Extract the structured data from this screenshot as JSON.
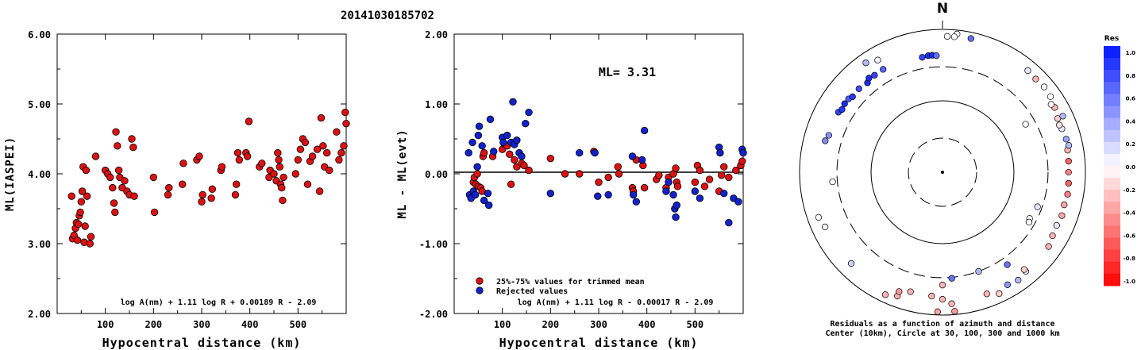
{
  "title": "20141030185702",
  "chart_data": [
    {
      "type": "scatter",
      "ylabel": "ML(IASPEI)",
      "xlabel": "Hypocentral distance (km)",
      "xlim": [
        0,
        600
      ],
      "ylim": [
        2.0,
        6.0
      ],
      "x_ticks": [
        "100",
        "200",
        "300",
        "400",
        "500"
      ],
      "y_ticks": [
        "2.00",
        "3.00",
        "4.00",
        "5.00",
        "6.00"
      ],
      "formula": "log A(nm) + 1.11 log R + 0.00189 R - 2.09",
      "marker_color": "#dd1111",
      "points": [
        [
          30,
          3.68
        ],
        [
          32,
          3.07
        ],
        [
          35,
          3.12
        ],
        [
          38,
          3.22
        ],
        [
          40,
          3.3
        ],
        [
          42,
          3.05
        ],
        [
          44,
          3.28
        ],
        [
          46,
          3.4
        ],
        [
          48,
          3.45
        ],
        [
          50,
          3.6
        ],
        [
          52,
          3.75
        ],
        [
          54,
          4.1
        ],
        [
          56,
          3.02
        ],
        [
          58,
          3.25
        ],
        [
          60,
          4.05
        ],
        [
          62,
          3.68
        ],
        [
          68,
          3.0
        ],
        [
          70,
          3.1
        ],
        [
          80,
          4.25
        ],
        [
          100,
          4.05
        ],
        [
          105,
          4.0
        ],
        [
          110,
          3.95
        ],
        [
          115,
          3.8
        ],
        [
          118,
          3.58
        ],
        [
          120,
          3.45
        ],
        [
          122,
          4.6
        ],
        [
          125,
          4.4
        ],
        [
          128,
          4.05
        ],
        [
          130,
          3.95
        ],
        [
          135,
          3.8
        ],
        [
          140,
          3.9
        ],
        [
          145,
          3.75
        ],
        [
          150,
          3.7
        ],
        [
          155,
          4.5
        ],
        [
          158,
          4.38
        ],
        [
          160,
          3.68
        ],
        [
          200,
          3.95
        ],
        [
          202,
          3.45
        ],
        [
          230,
          3.7
        ],
        [
          232,
          3.8
        ],
        [
          260,
          3.85
        ],
        [
          262,
          4.15
        ],
        [
          290,
          4.2
        ],
        [
          295,
          4.25
        ],
        [
          300,
          3.6
        ],
        [
          302,
          3.7
        ],
        [
          320,
          3.65
        ],
        [
          322,
          3.78
        ],
        [
          340,
          4.05
        ],
        [
          342,
          4.1
        ],
        [
          370,
          3.7
        ],
        [
          372,
          3.85
        ],
        [
          375,
          4.3
        ],
        [
          378,
          4.2
        ],
        [
          392,
          4.3
        ],
        [
          395,
          4.25
        ],
        [
          398,
          4.75
        ],
        [
          420,
          4.1
        ],
        [
          425,
          4.15
        ],
        [
          440,
          3.95
        ],
        [
          442,
          4.05
        ],
        [
          450,
          4.0
        ],
        [
          455,
          3.9
        ],
        [
          458,
          4.3
        ],
        [
          460,
          4.2
        ],
        [
          462,
          4.1
        ],
        [
          464,
          3.85
        ],
        [
          466,
          3.8
        ],
        [
          468,
          3.62
        ],
        [
          470,
          3.95
        ],
        [
          495,
          4.0
        ],
        [
          500,
          4.2
        ],
        [
          505,
          4.35
        ],
        [
          510,
          4.5
        ],
        [
          515,
          4.45
        ],
        [
          520,
          3.85
        ],
        [
          525,
          4.18
        ],
        [
          530,
          4.25
        ],
        [
          540,
          4.35
        ],
        [
          545,
          3.75
        ],
        [
          548,
          4.8
        ],
        [
          552,
          4.4
        ],
        [
          555,
          4.1
        ],
        [
          560,
          4.3
        ],
        [
          565,
          4.05
        ],
        [
          580,
          4.6
        ],
        [
          585,
          4.2
        ],
        [
          590,
          4.3
        ],
        [
          595,
          4.4
        ],
        [
          598,
          4.88
        ],
        [
          600,
          4.72
        ]
      ]
    },
    {
      "type": "scatter",
      "ylabel": "ML - ML(evt)",
      "xlabel": "Hypocentral distance (km)",
      "xlim": [
        0,
        600
      ],
      "ylim": [
        -2.0,
        2.0
      ],
      "x_ticks": [
        "100",
        "200",
        "300",
        "400",
        "500"
      ],
      "y_ticks": [
        "-2.00",
        "-1.00",
        "0.00",
        "1.00",
        "2.00"
      ],
      "reference_line": 0.0,
      "annotation": "ML= 3.31",
      "formula": "log A(nm) + 1.11 log R - 0.00017 R - 2.09",
      "legend": [
        {
          "label": "25%-75% values for trimmed mean",
          "color": "#dd1111"
        },
        {
          "label": "Rejected values",
          "color": "#1122cc"
        }
      ],
      "series": [
        {
          "name": "25%-75% values for trimmed mean",
          "color": "#dd1111",
          "points": [
            [
              40,
              -0.12
            ],
            [
              42,
              -0.05
            ],
            [
              45,
              -0.15
            ],
            [
              48,
              0.0
            ],
            [
              50,
              -0.18
            ],
            [
              55,
              -0.2
            ],
            [
              58,
              -0.25
            ],
            [
              60,
              0.25
            ],
            [
              62,
              0.3
            ],
            [
              80,
              0.25
            ],
            [
              100,
              0.35
            ],
            [
              105,
              0.42
            ],
            [
              110,
              0.4
            ],
            [
              115,
              0.28
            ],
            [
              118,
              -0.15
            ],
            [
              125,
              0.2
            ],
            [
              130,
              0.1
            ],
            [
              140,
              0.15
            ],
            [
              145,
              0.12
            ],
            [
              155,
              0.05
            ],
            [
              200,
              0.22
            ],
            [
              230,
              0.0
            ],
            [
              260,
              0.0
            ],
            [
              290,
              0.32
            ],
            [
              300,
              -0.12
            ],
            [
              320,
              -0.05
            ],
            [
              340,
              0.1
            ],
            [
              342,
              0.0
            ],
            [
              370,
              -0.2
            ],
            [
              372,
              -0.25
            ],
            [
              378,
              0.2
            ],
            [
              392,
              0.12
            ],
            [
              395,
              -0.2
            ],
            [
              420,
              -0.08
            ],
            [
              425,
              -0.02
            ],
            [
              440,
              -0.2
            ],
            [
              445,
              -0.05
            ],
            [
              455,
              0.0
            ],
            [
              460,
              0.08
            ],
            [
              462,
              -0.12
            ],
            [
              464,
              -0.18
            ],
            [
              500,
              -0.12
            ],
            [
              505,
              0.12
            ],
            [
              510,
              0.05
            ],
            [
              520,
              -0.18
            ],
            [
              530,
              -0.08
            ],
            [
              550,
              -0.25
            ],
            [
              555,
              -0.02
            ],
            [
              560,
              0.1
            ],
            [
              570,
              -0.05
            ],
            [
              585,
              0.05
            ],
            [
              595,
              0.12
            ],
            [
              598,
              0.18
            ]
          ]
        },
        {
          "name": "Rejected values",
          "color": "#1122cc",
          "points": [
            [
              30,
              0.3
            ],
            [
              32,
              -0.3
            ],
            [
              35,
              -0.35
            ],
            [
              38,
              0.45
            ],
            [
              40,
              -0.25
            ],
            [
              44,
              -0.3
            ],
            [
              48,
              0.1
            ],
            [
              50,
              0.55
            ],
            [
              52,
              0.68
            ],
            [
              58,
              0.4
            ],
            [
              62,
              -0.38
            ],
            [
              70,
              -0.28
            ],
            [
              72,
              -0.45
            ],
            [
              75,
              0.78
            ],
            [
              82,
              0.32
            ],
            [
              100,
              0.52
            ],
            [
              102,
              0.45
            ],
            [
              110,
              0.55
            ],
            [
              118,
              0.45
            ],
            [
              122,
              1.03
            ],
            [
              125,
              0.42
            ],
            [
              130,
              0.48
            ],
            [
              135,
              0.3
            ],
            [
              140,
              0.25
            ],
            [
              148,
              0.72
            ],
            [
              155,
              0.88
            ],
            [
              200,
              -0.28
            ],
            [
              260,
              0.3
            ],
            [
              292,
              0.3
            ],
            [
              298,
              -0.32
            ],
            [
              320,
              -0.3
            ],
            [
              370,
              0.25
            ],
            [
              372,
              -0.3
            ],
            [
              378,
              -0.4
            ],
            [
              390,
              0.2
            ],
            [
              395,
              0.62
            ],
            [
              440,
              -0.25
            ],
            [
              445,
              -0.12
            ],
            [
              455,
              -0.3
            ],
            [
              458,
              -0.5
            ],
            [
              460,
              -0.62
            ],
            [
              462,
              -0.45
            ],
            [
              500,
              -0.25
            ],
            [
              510,
              -0.35
            ],
            [
              550,
              0.38
            ],
            [
              552,
              0.3
            ],
            [
              560,
              -0.28
            ],
            [
              570,
              -0.7
            ],
            [
              580,
              -0.35
            ],
            [
              590,
              -0.4
            ],
            [
              598,
              0.35
            ],
            [
              600,
              0.3
            ]
          ]
        }
      ]
    },
    {
      "type": "scatter",
      "subtype": "polar residual plot",
      "north_label": "N",
      "caption_line1": "Residuals as a function of azimuth and distance",
      "caption_line2": "Center (10km), Circle at 30, 100, 300 and 1000 km",
      "colorbar_title": "Res",
      "colorbar_ticks": [
        "1.0",
        "0.8",
        "0.6",
        "0.4",
        "0.2",
        "0.0",
        "-0.2",
        "-0.4",
        "-0.6",
        "-0.8",
        "-1.0"
      ],
      "rings_km": [
        30,
        100,
        300,
        1000
      ],
      "points_az_dist_res": [
        [
          6,
          880,
          0.0
        ],
        [
          2,
          800,
          0.0
        ],
        [
          5,
          800,
          0.0
        ],
        [
          12,
          820,
          0.6
        ],
        [
          325,
          740,
          0.3
        ],
        [
          330,
          650,
          0.05
        ],
        [
          300,
          480,
          0.8
        ],
        [
          305,
          470,
          0.9
        ],
        [
          302,
          455,
          0.85
        ],
        [
          308,
          465,
          0.7
        ],
        [
          310,
          440,
          0.85
        ],
        [
          315,
          450,
          0.75
        ],
        [
          320,
          430,
          0.9
        ],
        [
          322,
          470,
          0.9
        ],
        [
          325,
          455,
          0.8
        ],
        [
          330,
          460,
          0.65
        ],
        [
          350,
          430,
          0.8
        ],
        [
          353,
          440,
          0.9
        ],
        [
          355,
          440,
          0.9
        ],
        [
          357,
          430,
          0.6
        ],
        [
          285,
          500,
          0.5
        ],
        [
          288,
          470,
          0.45
        ],
        [
          265,
          350,
          0.0
        ],
        [
          245,
          650,
          0.0
        ],
        [
          250,
          700,
          0.0
        ],
        [
          225,
          640,
          0.2
        ],
        [
          205,
          780,
          -0.3
        ],
        [
          200,
          700,
          -0.3
        ],
        [
          200,
          600,
          -0.4
        ],
        [
          195,
          540,
          -0.3
        ],
        [
          185,
          550,
          -0.3
        ],
        [
          180,
          600,
          -0.3
        ],
        [
          176,
          700,
          -0.3
        ],
        [
          175,
          900,
          -0.4
        ],
        [
          182,
          900,
          -0.35
        ],
        [
          160,
          650,
          -0.3
        ],
        [
          155,
          750,
          -0.2
        ],
        [
          145,
          700,
          0.3
        ],
        [
          150,
          660,
          0.45
        ],
        [
          140,
          650,
          0.1
        ],
        [
          140,
          600,
          -0.2
        ],
        [
          125,
          650,
          -0.3
        ],
        [
          120,
          600,
          -0.3
        ],
        [
          115,
          580,
          0.1
        ],
        [
          110,
          600,
          -0.35
        ],
        [
          105,
          580,
          -0.35
        ],
        [
          100,
          600,
          -0.5
        ],
        [
          95,
          590,
          -0.6
        ],
        [
          90,
          580,
          -0.5
        ],
        [
          85,
          590,
          -0.6
        ],
        [
          80,
          600,
          -0.3
        ],
        [
          78,
          640,
          0.3
        ],
        [
          75,
          620,
          0.4
        ],
        [
          70,
          600,
          0.1
        ],
        [
          68,
          580,
          -0.1
        ],
        [
          65,
          600,
          -0.2
        ],
        [
          60,
          650,
          -0.3
        ],
        [
          58,
          620,
          0.0
        ],
        [
          55,
          700,
          0.0
        ],
        [
          50,
          720,
          0.0
        ],
        [
          45,
          700,
          -0.3
        ],
        [
          40,
          720,
          0.1
        ],
        [
          65,
          720,
          0.3
        ],
        [
          110,
          260,
          0.1
        ],
        [
          118,
          240,
          0.0
        ],
        [
          120,
          250,
          0.0
        ],
        [
          60,
          220,
          0.0
        ],
        [
          145,
          380,
          0.6
        ],
        [
          180,
          380,
          -0.3
        ],
        [
          175,
          310,
          0.6
        ],
        [
          160,
          300,
          0.3
        ]
      ]
    }
  ]
}
